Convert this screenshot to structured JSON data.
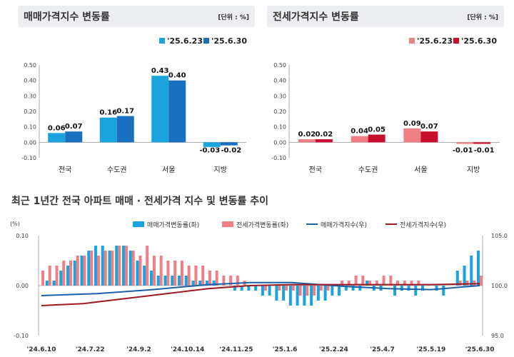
{
  "titles": {
    "sale_panel": "매매가격지수 변동률",
    "jeonse_panel": "전세가격지수 변동률",
    "unit": "[단위 : %]",
    "bottom": "최근 1년간 전국 아파트 매매 · 전세가격 지수 및 변동률 추이"
  },
  "colors": {
    "sale_prev": "#1ba3de",
    "sale_cur": "#1a6fbe",
    "jeonse_prev": "#f07e85",
    "jeonse_cur": "#c8102e",
    "sale_index_line": "#1a5fa8",
    "jeonse_index_line": "#9b1c20"
  },
  "chart_data": [
    {
      "type": "bar",
      "title": "매매가격지수 변동률",
      "unit": "[단위 : %]",
      "categories": [
        "전국",
        "수도권",
        "서울",
        "지방"
      ],
      "series": [
        {
          "name": "'25.6.23",
          "values": [
            0.06,
            0.16,
            0.43,
            -0.03
          ]
        },
        {
          "name": "'25.6.30",
          "values": [
            0.07,
            0.17,
            0.4,
            -0.02
          ]
        }
      ],
      "ylim": [
        -0.1,
        0.5
      ],
      "yticks": [
        "0.50",
        "0.40",
        "0.30",
        "0.20",
        "0.10",
        "0.00",
        "-0.10"
      ],
      "legend": "top-right",
      "grid": false
    },
    {
      "type": "bar",
      "title": "전세가격지수 변동률",
      "unit": "[단위 : %]",
      "categories": [
        "전국",
        "수도권",
        "서울",
        "지방"
      ],
      "series": [
        {
          "name": "'25.6.23",
          "values": [
            0.02,
            0.04,
            0.09,
            -0.01
          ]
        },
        {
          "name": "'25.6.30",
          "values": [
            0.02,
            0.05,
            0.07,
            -0.01
          ]
        }
      ],
      "ylim": [
        -0.1,
        0.5
      ],
      "yticks": [
        "0.50",
        "0.40",
        "0.30",
        "0.20",
        "0.10",
        "0.00",
        "-0.10"
      ],
      "legend": "top-right",
      "grid": false
    },
    {
      "type": "bar+line",
      "title": "최근 1년간 전국 아파트 매매 · 전세가격 지수 및 변동률 추이",
      "y_left_label": "(%)",
      "y_left_ticks": [
        "0.10",
        "0.00",
        "-0.10"
      ],
      "y_left_lim": [
        -0.1,
        0.1
      ],
      "y_right_ticks": [
        "105.0",
        "100.0",
        "95.0"
      ],
      "y_right_lim": [
        95.0,
        105.0
      ],
      "x_ticks": [
        "'24.6.10",
        "'24.7.22",
        "'24.9.2",
        "'24.10.14",
        "'24.11.25",
        "'25.1.6",
        "'25.2.24",
        "'25.4.7",
        "'25.5.19",
        "'25.6.30"
      ],
      "legend": [
        "매매가격변동률(좌)",
        "전세가격변동률(좌)",
        "매매가격지수(우)",
        "전세가격지수(우)"
      ],
      "legend_placement": "top",
      "series": [
        {
          "name": "매매가격변동률(좌)",
          "axis": "left",
          "kind": "bar",
          "values": [
            0.0,
            0.01,
            0.01,
            0.03,
            0.04,
            0.05,
            0.06,
            0.07,
            0.08,
            0.08,
            0.07,
            0.08,
            0.08,
            0.07,
            0.05,
            0.04,
            0.03,
            0.02,
            0.02,
            0.02,
            0.02,
            0.02,
            0.01,
            0.01,
            0.01,
            0.01,
            0.0,
            0.0,
            -0.01,
            -0.01,
            -0.01,
            -0.01,
            -0.02,
            -0.02,
            -0.03,
            -0.03,
            -0.04,
            -0.04,
            -0.04,
            -0.04,
            -0.03,
            -0.03,
            -0.02,
            -0.02,
            -0.01,
            -0.01,
            -0.01,
            0.01,
            -0.01,
            -0.01,
            0.0,
            -0.02,
            -0.01,
            -0.01,
            -0.02,
            -0.01,
            0.0,
            -0.01,
            -0.02,
            0.0,
            0.03,
            0.04,
            0.06,
            0.07
          ]
        },
        {
          "name": "전세가격변동률(좌)",
          "axis": "left",
          "kind": "bar",
          "values": [
            0.03,
            0.04,
            0.04,
            0.05,
            0.05,
            0.06,
            0.06,
            0.07,
            0.06,
            0.07,
            0.07,
            0.08,
            0.08,
            0.07,
            0.06,
            0.08,
            0.06,
            0.06,
            0.05,
            0.05,
            0.05,
            0.04,
            0.04,
            0.04,
            0.03,
            0.03,
            0.02,
            0.02,
            0.02,
            0.01,
            0.0,
            0.0,
            -0.01,
            0.0,
            -0.01,
            -0.01,
            -0.01,
            -0.02,
            -0.02,
            -0.02,
            -0.01,
            -0.01,
            0.0,
            0.01,
            0.01,
            0.02,
            0.02,
            0.01,
            0.01,
            0.02,
            0.02,
            0.01,
            0.01,
            0.01,
            0.01,
            0.0,
            0.0,
            0.0,
            0.0,
            0.0,
            0.01,
            0.01,
            0.01,
            0.02
          ]
        },
        {
          "name": "매매가격지수(우)",
          "axis": "right",
          "kind": "line",
          "points": [
            [
              0,
              99.0
            ],
            [
              8,
              99.2
            ],
            [
              16,
              99.6
            ],
            [
              24,
              100.1
            ],
            [
              30,
              100.3
            ],
            [
              36,
              100.3
            ],
            [
              44,
              99.9
            ],
            [
              50,
              99.7
            ],
            [
              56,
              99.6
            ],
            [
              63,
              100.0
            ]
          ]
        },
        {
          "name": "전세가격지수(우)",
          "axis": "right",
          "kind": "line",
          "points": [
            [
              0,
              98.0
            ],
            [
              6,
              98.2
            ],
            [
              12,
              98.7
            ],
            [
              18,
              99.2
            ],
            [
              24,
              99.7
            ],
            [
              30,
              100.0
            ],
            [
              36,
              100.1
            ],
            [
              44,
              100.1
            ],
            [
              50,
              100.1
            ],
            [
              56,
              100.1
            ],
            [
              63,
              100.2
            ]
          ]
        }
      ]
    }
  ]
}
